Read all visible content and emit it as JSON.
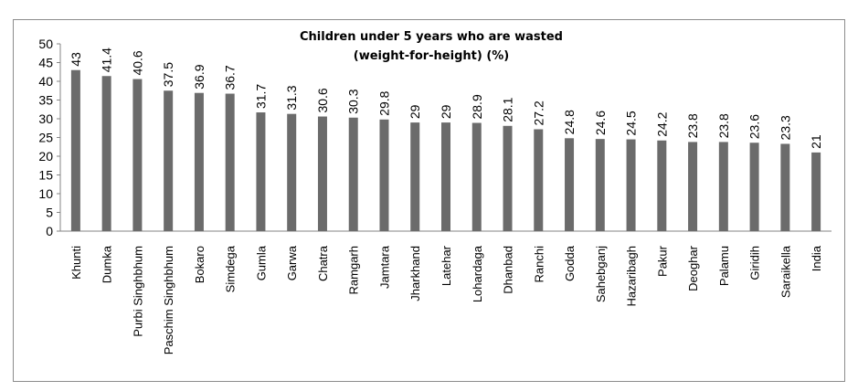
{
  "chart_data": {
    "type": "bar",
    "title_lines": [
      "Children under 5 years who are wasted",
      "(weight-for-height) (%)"
    ],
    "categories": [
      "Khunti",
      "Dumka",
      "Purbi Singhbhum",
      "Paschim Singhbhum",
      "Bokaro",
      "Simdega",
      "Gumla",
      "Garwa",
      "Chatra",
      "Ramgarh",
      "Jamtara",
      "Jharkhand",
      "Latehar",
      "Lohardaga",
      "Dhanbad",
      "Ranchi",
      "Godda",
      "Sahebganj",
      "Hazaribagh",
      "Pakur",
      "Deoghar",
      "Palamu",
      "Giridih",
      "Saraikella",
      "India"
    ],
    "values": [
      43,
      41.4,
      40.6,
      37.5,
      36.9,
      36.7,
      31.7,
      31.3,
      30.6,
      30.3,
      29.8,
      29,
      29,
      28.9,
      28.1,
      27.2,
      24.8,
      24.6,
      24.5,
      24.2,
      23.8,
      23.8,
      23.6,
      23.3,
      21
    ],
    "labels": [
      "43",
      "41.4",
      "40.6",
      "37.5",
      "36.9",
      "36.7",
      "31.7",
      "31.3",
      "30.6",
      "30.3",
      "29.8",
      "29",
      "29",
      "28.9",
      "28.1",
      "27.2",
      "24.8",
      "24.6",
      "24.5",
      "24.2",
      "23.8",
      "23.8",
      "23.6",
      "23.3",
      "21"
    ],
    "ylim": [
      0,
      50
    ],
    "yticks": [
      "0",
      "5",
      "10",
      "15",
      "20",
      "25",
      "30",
      "35",
      "40",
      "45",
      "50"
    ],
    "bar_color": "#6b6b6b",
    "grid": false,
    "legend": "none"
  }
}
